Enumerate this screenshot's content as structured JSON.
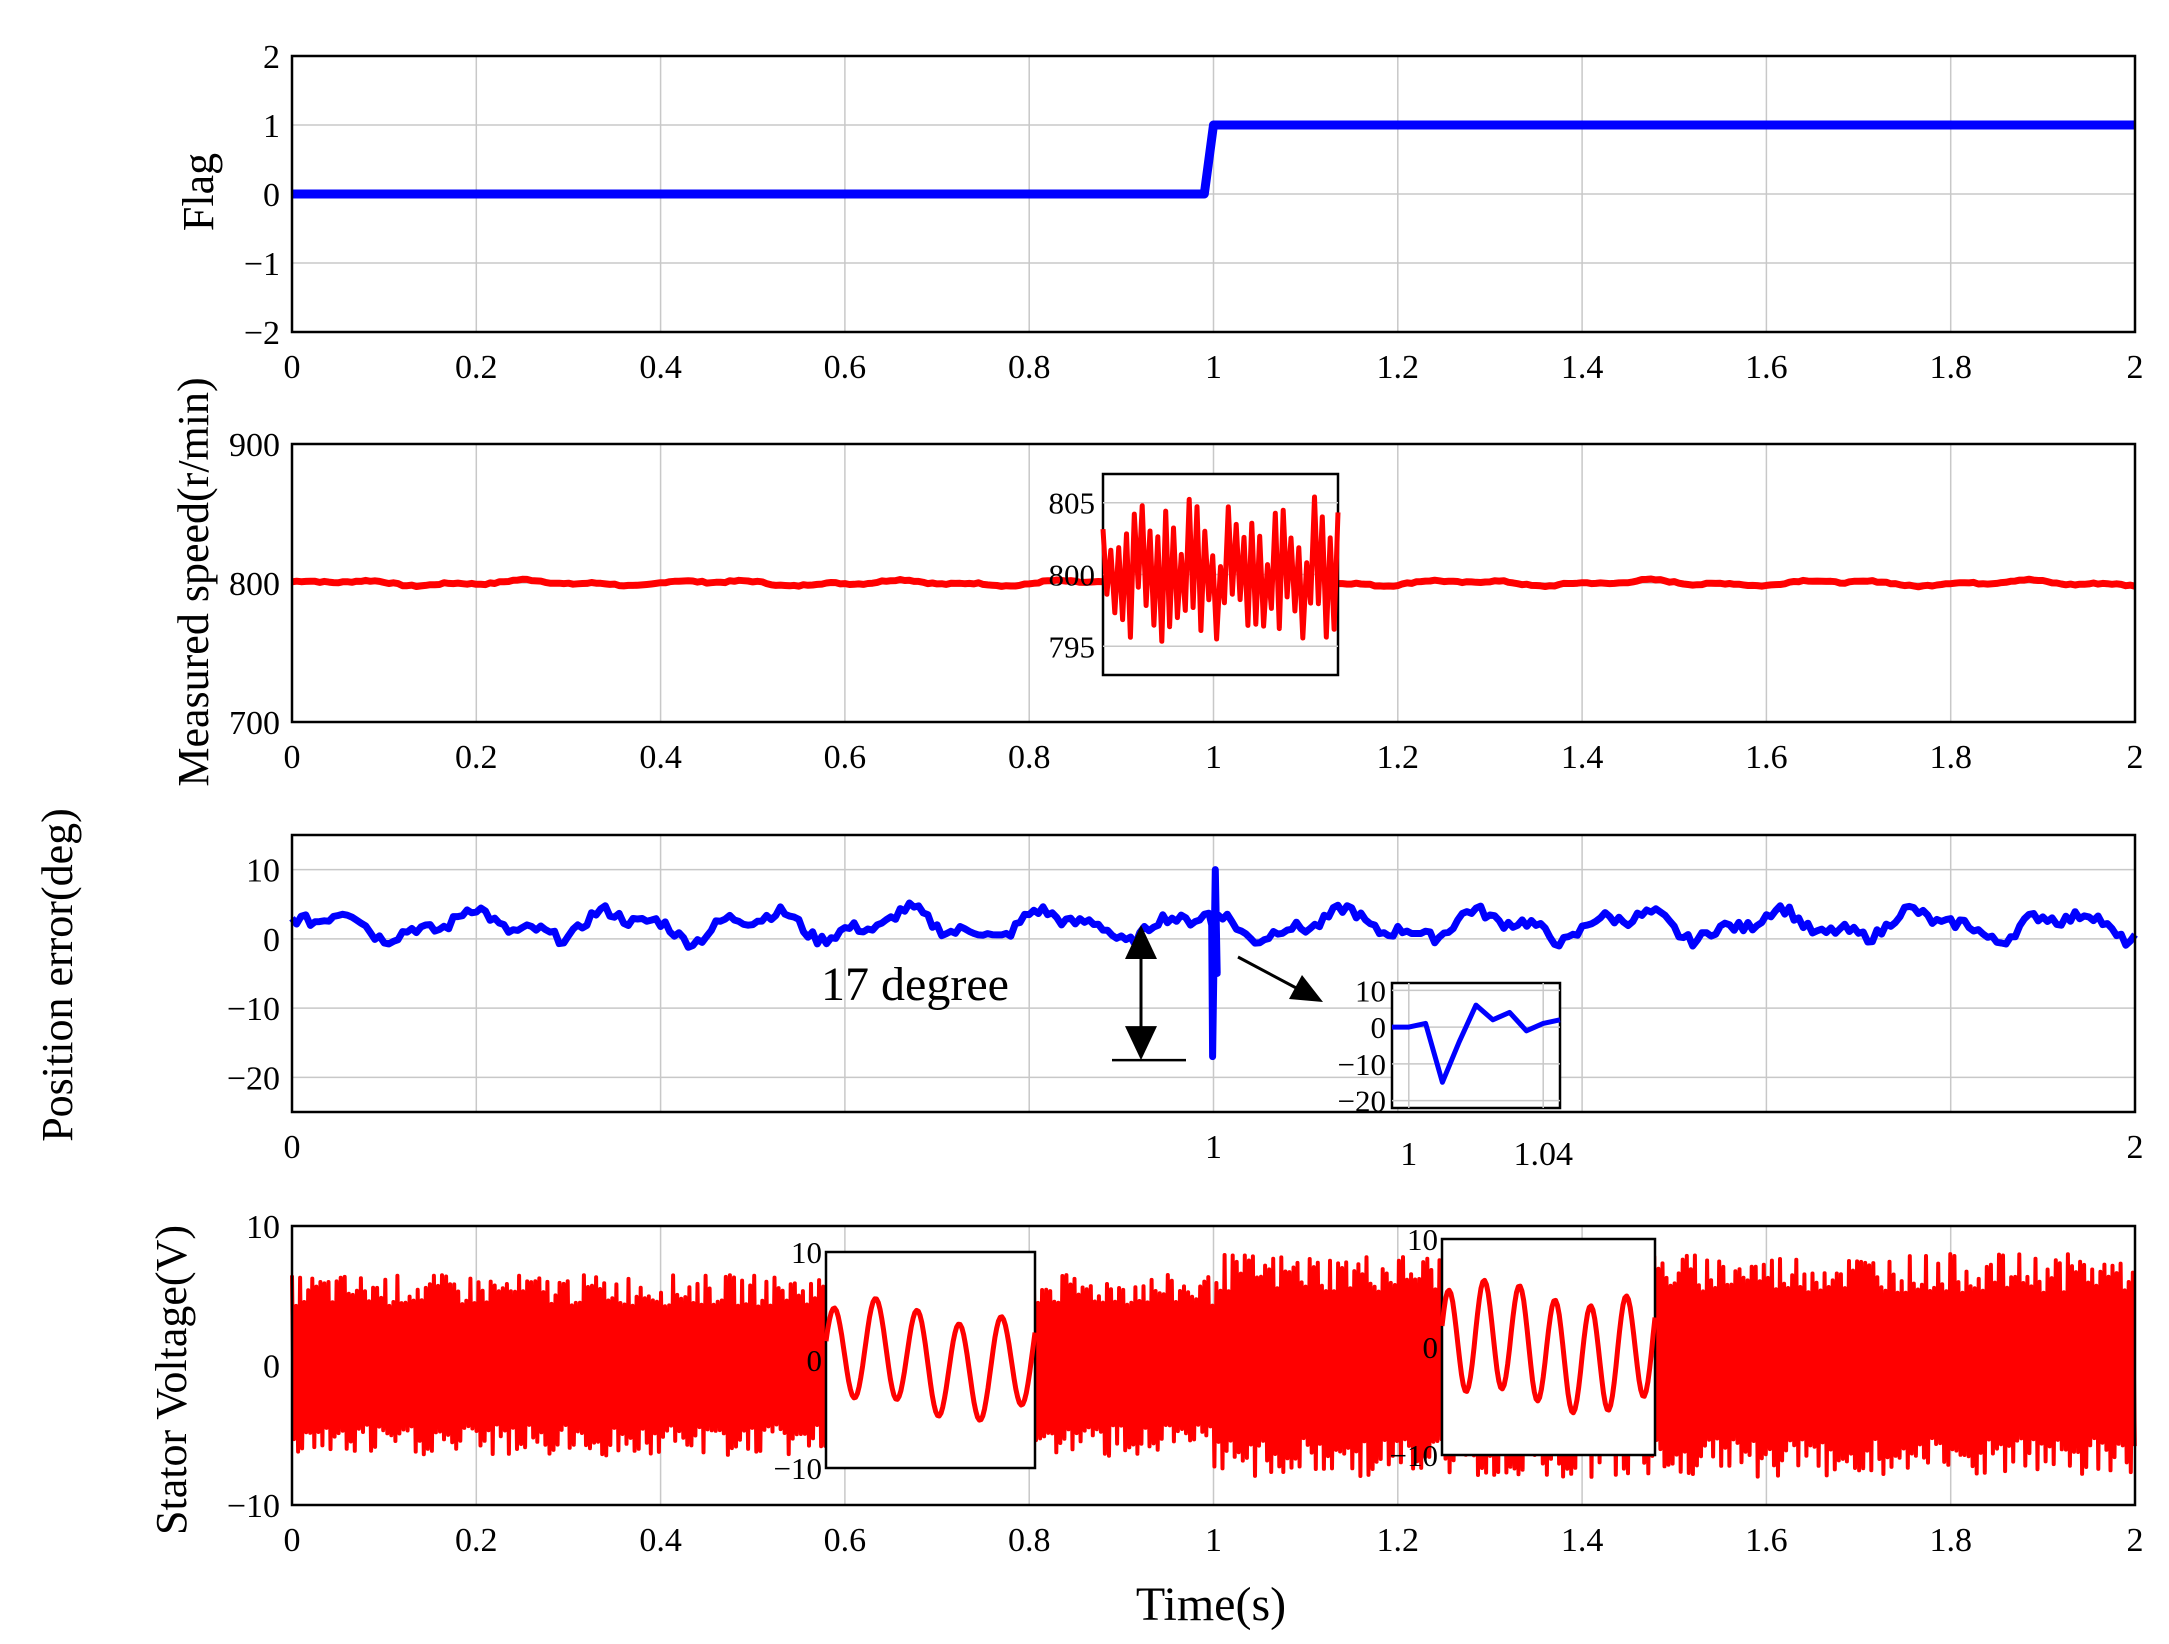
{
  "colors": {
    "blue": "#0000ff",
    "red": "#ff0000",
    "grid": "#c8c8c8",
    "axis": "#000000"
  },
  "shared_label": "Position error(deg)",
  "xlabel": "Time(s)",
  "annotation": {
    "text": "17 degree"
  },
  "chart_data": [
    {
      "type": "line",
      "ylabel": "Flag",
      "xlim": [
        0,
        2
      ],
      "ylim": [
        -2,
        2
      ],
      "xticks": [
        "0",
        "0.2",
        "0.4",
        "0.6",
        "0.8",
        "1",
        "1.2",
        "1.4",
        "1.6",
        "1.8",
        "2"
      ],
      "yticks": [
        "2",
        "1",
        "0",
        "−1",
        "−2"
      ],
      "grid": true,
      "series": [
        {
          "color": "blue",
          "x": [
            0,
            0.99,
            1.0,
            2.0
          ],
          "y": [
            0,
            0,
            1,
            1
          ]
        }
      ]
    },
    {
      "type": "line",
      "ylabel": "Measured speed(r/min)",
      "xlim": [
        0,
        2
      ],
      "ylim": [
        700,
        900
      ],
      "xticks": [
        "0",
        "0.2",
        "0.4",
        "0.6",
        "0.8",
        "1",
        "1.2",
        "1.4",
        "1.6",
        "1.8",
        "2"
      ],
      "yticks": [
        "900",
        "800",
        "700"
      ],
      "grid": true,
      "series": [
        {
          "color": "red",
          "base": 800,
          "amplitude": 3,
          "note_range": [
            797,
            804
          ]
        }
      ],
      "inset": {
        "yticks": [
          "805",
          "800",
          "795"
        ],
        "ylim": [
          793,
          807
        ],
        "range": [
          795,
          806
        ]
      }
    },
    {
      "type": "line",
      "xlim": [
        0,
        2
      ],
      "ylim": [
        -25,
        15
      ],
      "xticks": [
        "0",
        "1",
        "2"
      ],
      "yticks": [
        "10",
        "0",
        "−10",
        "−20"
      ],
      "grid": true,
      "series": [
        {
          "color": "blue",
          "base": 2,
          "amplitude": 3,
          "spike_at": 1.0,
          "spike_min": -17,
          "spike_max": 10
        }
      ],
      "inset": {
        "yticks": [
          "10",
          "0",
          "−10",
          "−20"
        ],
        "xticks": [
          "1",
          "1.04"
        ],
        "ylim": [
          -22,
          12
        ],
        "x": [
          0.995,
          1.0,
          1.005,
          1.01,
          1.015,
          1.02,
          1.025,
          1.03,
          1.035,
          1.04,
          1.045
        ],
        "y": [
          0,
          0,
          1,
          -15,
          -4,
          6,
          2,
          4,
          -1,
          1,
          2
        ]
      }
    },
    {
      "type": "line",
      "ylabel": "Stator Voltage(V)",
      "xlim": [
        0,
        2
      ],
      "ylim": [
        -10,
        10
      ],
      "xticks": [
        "0",
        "0.2",
        "0.4",
        "0.6",
        "0.8",
        "1",
        "1.2",
        "1.4",
        "1.6",
        "1.8",
        "2"
      ],
      "yticks": [
        "10",
        "0",
        "−10"
      ],
      "grid": true,
      "series": [
        {
          "color": "red",
          "amplitude_before": 6.5,
          "amplitude_after": 8
        }
      ],
      "insets": [
        {
          "yticks": [
            "10",
            "0",
            "−10"
          ],
          "ylim": [
            -10,
            10
          ],
          "cycles": 5,
          "amplitude": 4.5
        },
        {
          "yticks": [
            "10",
            "0",
            "−10"
          ],
          "ylim": [
            -10,
            10
          ],
          "cycles": 6,
          "amplitude": 5
        }
      ]
    }
  ]
}
